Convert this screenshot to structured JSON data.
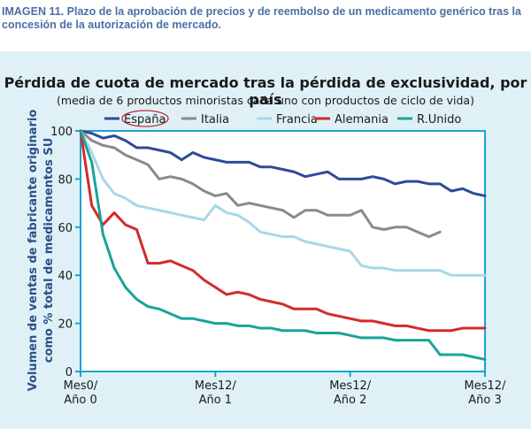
{
  "caption": "IMAGEN 11. Plazo de la aprobación de precios y de reembolso de un medicamento genérico tras la concesión de la autorización de mercado.",
  "colors": {
    "background_panel": "#dff1f7",
    "axis": "#1aa3d0",
    "caption": "#4a6fa5",
    "ylabel": "#2d4e86",
    "highlight_circle": "#c0323a"
  },
  "chart_data": {
    "type": "line",
    "title": "Pérdida de cuota de mercado tras la pérdida de exclusividad, por país",
    "subtitle": "(media de 6 productos minoristas cada uno con productos de ciclo de vida)",
    "ylabel_line1": "Volumen de ventas de fabricante originario",
    "ylabel_line2": "como % total de medicamentos SU",
    "ylim": [
      0,
      100
    ],
    "yticks": [
      "0",
      "20",
      "40",
      "60",
      "80",
      "100"
    ],
    "xlim": [
      0,
      36
    ],
    "xticks": [
      {
        "x": 0,
        "line1": "Mes0/",
        "line2": "Año 0"
      },
      {
        "x": 12,
        "line1": "Mes12/",
        "line2": "Año 1"
      },
      {
        "x": 24,
        "line1": "Mes12/",
        "line2": "Año 2"
      },
      {
        "x": 36,
        "line1": "Mes12/",
        "line2": "Año 3"
      }
    ],
    "legend_placement": "top",
    "highlighted_series": "España",
    "series": [
      {
        "name": "España",
        "color": "#2e4a9a",
        "values": [
          100,
          99,
          97,
          98,
          96,
          93,
          93,
          92,
          91,
          88,
          91,
          89,
          88,
          87,
          87,
          87,
          85,
          85,
          84,
          83,
          81,
          82,
          83,
          80,
          80,
          80,
          81,
          80,
          78,
          79,
          79,
          78,
          78,
          75,
          76,
          74,
          73
        ]
      },
      {
        "name": "Italia",
        "color": "#8a8a8a",
        "values": [
          100,
          96,
          94,
          93,
          90,
          88,
          86,
          80,
          81,
          80,
          78,
          75,
          73,
          74,
          69,
          70,
          69,
          68,
          67,
          64,
          67,
          67,
          65,
          65,
          65,
          67,
          60,
          59,
          60,
          60,
          58,
          56,
          58
        ]
      },
      {
        "name": "Francia",
        "color": "#a9d6ea",
        "values": [
          100,
          91,
          80,
          74,
          72,
          69,
          68,
          67,
          66,
          65,
          64,
          63,
          69,
          66,
          65,
          62,
          58,
          57,
          56,
          56,
          54,
          53,
          52,
          51,
          50,
          44,
          43,
          43,
          42,
          42,
          42,
          42,
          42,
          40,
          40,
          40,
          40
        ]
      },
      {
        "name": "Alemania",
        "color": "#d42a2a",
        "values": [
          100,
          69,
          61,
          66,
          61,
          59,
          45,
          45,
          46,
          44,
          42,
          38,
          35,
          32,
          33,
          32,
          30,
          29,
          28,
          26,
          26,
          26,
          24,
          23,
          22,
          21,
          21,
          20,
          19,
          19,
          18,
          17,
          17,
          17,
          18,
          18,
          18
        ]
      },
      {
        "name": "R.Unido",
        "color": "#1aa39a",
        "values": [
          100,
          87,
          57,
          43,
          35,
          30,
          27,
          26,
          24,
          22,
          22,
          21,
          20,
          20,
          19,
          19,
          18,
          18,
          17,
          17,
          17,
          16,
          16,
          16,
          15,
          14,
          14,
          14,
          13,
          13,
          13,
          13,
          7,
          7,
          7,
          6,
          5
        ]
      }
    ]
  }
}
